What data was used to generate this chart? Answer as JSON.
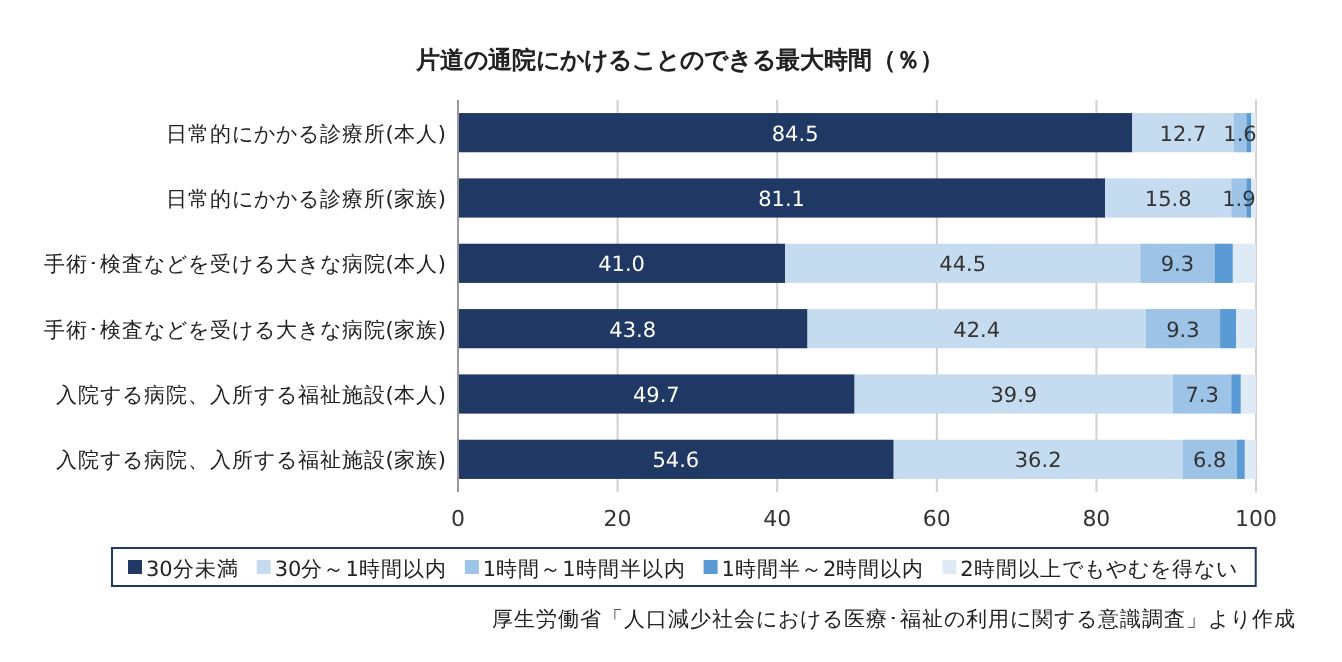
{
  "chart_data": {
    "type": "bar",
    "orientation": "horizontal",
    "stacked": true,
    "title": "片道の通院にかけることのできる最大時間（％）",
    "categories": [
      "日常的にかかる診療所(本人)",
      "日常的にかかる診療所(家族)",
      "手術･検査などを受ける大きな病院(本人)",
      "手術･検査などを受ける大きな病院(家族)",
      "入院する病院、入所する福祉施設(本人)",
      "入院する病院、入所する福祉施設(家族)"
    ],
    "series": [
      {
        "name": "30分未満",
        "color": "#1f3864",
        "values": [
          84.5,
          81.1,
          41.0,
          43.8,
          49.7,
          54.6
        ],
        "value_labels": [
          "84.5",
          "81.1",
          "41.0",
          "43.8",
          "49.7",
          "54.6"
        ]
      },
      {
        "name": "30分～1時間以内",
        "color": "#c5dcf0",
        "values": [
          12.7,
          15.8,
          44.5,
          42.4,
          39.9,
          36.2
        ],
        "value_labels": [
          "12.7",
          "15.8",
          "44.5",
          "42.4",
          "39.9",
          "36.2"
        ]
      },
      {
        "name": "1時間～1時間半以内",
        "color": "#9dc3e6",
        "values": [
          1.6,
          1.9,
          9.3,
          9.3,
          7.3,
          6.8
        ],
        "value_labels": [
          "1.6",
          "1.9",
          "9.3",
          "9.3",
          "7.3",
          "6.8"
        ]
      },
      {
        "name": "1時間半～2時間以内",
        "color": "#5b9bd5",
        "values": [
          0.6,
          0.6,
          2.3,
          2.0,
          1.2,
          1.0
        ]
      },
      {
        "name": "2時間以上でもやむを得ない",
        "color": "#deebf7",
        "values": [
          0.6,
          0.6,
          2.9,
          2.5,
          1.9,
          1.4
        ]
      }
    ],
    "xlim": [
      0,
      100
    ],
    "xticks": [
      0,
      20,
      40,
      60,
      80,
      100
    ],
    "grid": "x",
    "legend": "bottom",
    "annotations": [
      "厚生労働省「人口減少社会における医療･福祉の利用に関する意識調査」より作成"
    ]
  }
}
